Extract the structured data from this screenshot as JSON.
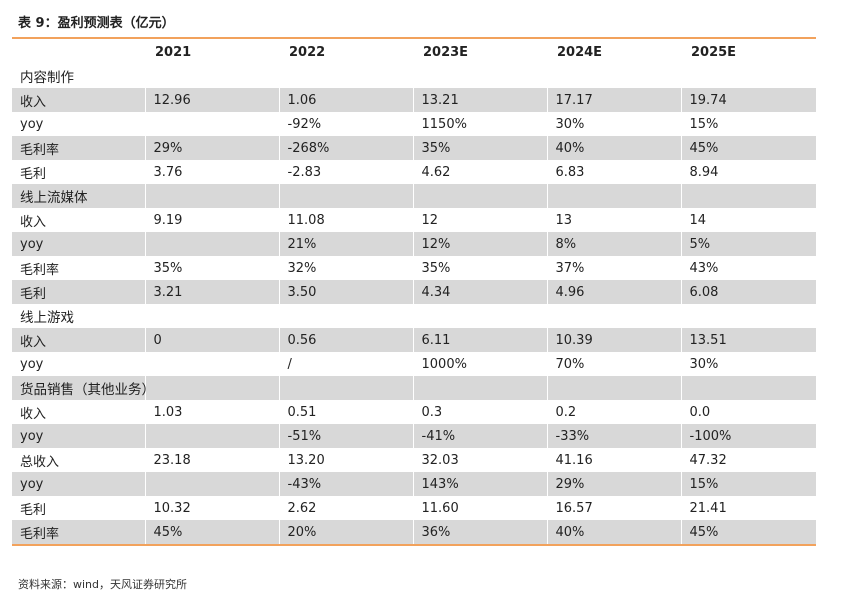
{
  "title": "表 9：盈利预测表（亿元）",
  "source": "资料来源：wind，天风证券研究所",
  "header": [
    "",
    "2021",
    "2022",
    "2023E",
    "2024E",
    "2025E"
  ],
  "rows": [
    {
      "cells": [
        "内容制作",
        "",
        "",
        "",
        "",
        ""
      ],
      "shade": false,
      "section": true
    },
    {
      "cells": [
        "收入",
        "12.96",
        "1.06",
        "13.21",
        "17.17",
        "19.74"
      ],
      "shade": true
    },
    {
      "cells": [
        "yoy",
        "",
        "-92%",
        "1150%",
        "30%",
        "15%"
      ],
      "shade": false
    },
    {
      "cells": [
        "毛利率",
        "29%",
        "-268%",
        "35%",
        "40%",
        "45%"
      ],
      "shade": true
    },
    {
      "cells": [
        "毛利",
        "3.76",
        "-2.83",
        "4.62",
        "6.83",
        "8.94"
      ],
      "shade": false
    },
    {
      "cells": [
        "线上流媒体",
        "",
        "",
        "",
        "",
        ""
      ],
      "shade": true,
      "section": true
    },
    {
      "cells": [
        "收入",
        "9.19",
        "11.08",
        "12",
        "13",
        "14"
      ],
      "shade": false
    },
    {
      "cells": [
        "yoy",
        "",
        "21%",
        "12%",
        "8%",
        "5%"
      ],
      "shade": true
    },
    {
      "cells": [
        "毛利率",
        "35%",
        "32%",
        "35%",
        "37%",
        "43%"
      ],
      "shade": false
    },
    {
      "cells": [
        "毛利",
        "3.21",
        "3.50",
        "4.34",
        "4.96",
        "6.08"
      ],
      "shade": true
    },
    {
      "cells": [
        "线上游戏",
        "",
        "",
        "",
        "",
        ""
      ],
      "shade": false,
      "section": true
    },
    {
      "cells": [
        "收入",
        "0",
        "0.56",
        "6.11",
        "10.39",
        "13.51"
      ],
      "shade": true
    },
    {
      "cells": [
        "yoy",
        "",
        "/",
        "1000%",
        "70%",
        "30%"
      ],
      "shade": false
    },
    {
      "cells": [
        "货品销售（其他业务）",
        "",
        "",
        "",
        "",
        ""
      ],
      "shade": true,
      "section": true
    },
    {
      "cells": [
        "收入",
        "1.03",
        "0.51",
        "0.3",
        "0.2",
        "0.0"
      ],
      "shade": false
    },
    {
      "cells": [
        "yoy",
        "",
        "-51%",
        "-41%",
        "-33%",
        "-100%"
      ],
      "shade": true
    },
    {
      "cells": [
        "总收入",
        "23.18",
        "13.20",
        "32.03",
        "41.16",
        "47.32"
      ],
      "shade": false
    },
    {
      "cells": [
        "yoy",
        "",
        "-43%",
        "143%",
        "29%",
        "15%"
      ],
      "shade": true
    },
    {
      "cells": [
        "毛利",
        "10.32",
        "2.62",
        "11.60",
        "16.57",
        "21.41"
      ],
      "shade": false
    },
    {
      "cells": [
        "毛利率",
        "45%",
        "20%",
        "36%",
        "40%",
        "45%"
      ],
      "shade": true
    }
  ],
  "colors": {
    "accent_rule": "#f2a25c",
    "row_shade": "#d8d8d8"
  }
}
